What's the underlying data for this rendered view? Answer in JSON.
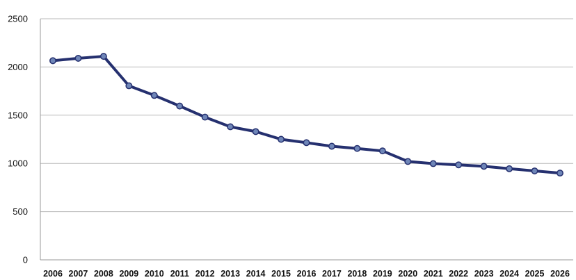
{
  "chart_data": {
    "type": "line",
    "title": "",
    "xlabel": "",
    "ylabel": "",
    "categories": [
      "2006",
      "2007",
      "2008",
      "2009",
      "2010",
      "2011",
      "2012",
      "2013",
      "2014",
      "2015",
      "2016",
      "2017",
      "2018",
      "2019",
      "2020",
      "2021",
      "2022",
      "2023",
      "2024",
      "2025",
      "2026"
    ],
    "series": [
      {
        "values": [
          2065,
          2090,
          2110,
          1805,
          1705,
          1595,
          1480,
          1380,
          1330,
          1250,
          1215,
          1178,
          1155,
          1130,
          1020,
          998,
          985,
          970,
          945,
          922,
          900
        ]
      }
    ],
    "ylim": [
      0,
      2500
    ],
    "yticks": [
      0,
      500,
      1000,
      1500,
      2000,
      2500
    ],
    "ytick_labels": [
      "0",
      "500",
      "1000",
      "1500",
      "2000",
      "2500"
    ],
    "grid": "horizontal",
    "legend": "none",
    "colors": {
      "line": "#25306f",
      "marker_fill": "#6f86b8",
      "marker_stroke": "#25306f",
      "grid": "#b8b8b8",
      "plot_background": "#ffffff"
    }
  }
}
